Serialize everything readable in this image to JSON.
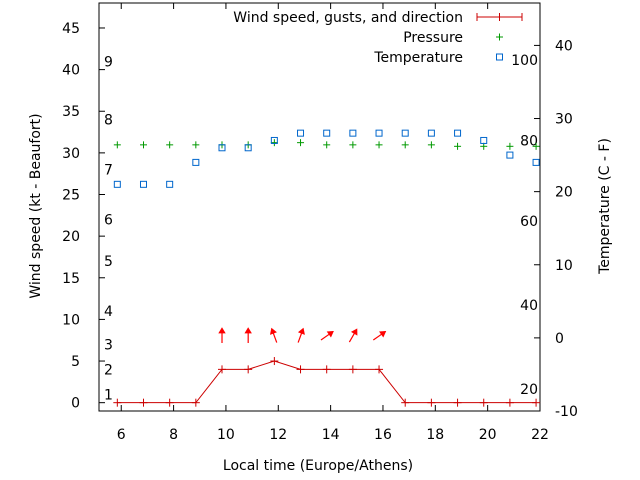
{
  "chart_data": {
    "type": "line",
    "xlabel": "Local time (Europe/Athens)",
    "ylabel": "Wind speed (kt - Beaufort)",
    "y2label": "Temperature (C - F)",
    "xlim": [
      5.15,
      22
    ],
    "ylim": [
      -1,
      48
    ],
    "y2lim": [
      -10,
      45.8
    ],
    "x_ticks": [
      6,
      8,
      10,
      12,
      14,
      16,
      18,
      20,
      22
    ],
    "y_ticks": [
      0,
      5,
      10,
      15,
      20,
      25,
      30,
      35,
      40,
      45
    ],
    "y2_ticks": [
      -10,
      0,
      10,
      20,
      30,
      40
    ],
    "beaufort_labels": [
      {
        "label": "1",
        "y": 1.0
      },
      {
        "label": "2",
        "y": 4.0
      },
      {
        "label": "3",
        "y": 7.0
      },
      {
        "label": "4",
        "y": 11.0
      },
      {
        "label": "5",
        "y": 17.0
      },
      {
        "label": "6",
        "y": 22.0
      },
      {
        "label": "7",
        "y": 28.0
      },
      {
        "label": "8",
        "y": 34.0
      },
      {
        "label": "9",
        "y": 41.0
      }
    ],
    "fahrenheit_labels": [
      {
        "label": "20",
        "y2": -7
      },
      {
        "label": "40",
        "y2": 4.5
      },
      {
        "label": "60",
        "y2": 16
      },
      {
        "label": "80",
        "y2": 27
      },
      {
        "label": "100",
        "y2": 38
      }
    ],
    "legend": [
      "Wind speed, gusts, and direction",
      "Pressure",
      "Temperature"
    ],
    "colors": {
      "wind": "#cc0000",
      "pressure": "#009900",
      "temperature": "#0066cc",
      "arrows": "#ff0000"
    },
    "series": [
      {
        "name": "Wind speed, gusts, and direction",
        "axis": "y",
        "x": [
          5.85,
          6.85,
          7.85,
          8.85,
          9.85,
          10.85,
          11.85,
          12.85,
          13.85,
          14.85,
          15.85,
          16.85,
          17.85,
          18.85,
          19.85,
          20.85,
          21.85
        ],
        "values": [
          0,
          0,
          0,
          0,
          4,
          4,
          5,
          4,
          4,
          4,
          4,
          0,
          0,
          0,
          0,
          0,
          0
        ]
      },
      {
        "name": "Pressure",
        "axis": "y2",
        "x": [
          5.85,
          6.85,
          7.85,
          8.85,
          9.85,
          10.85,
          11.85,
          12.85,
          13.85,
          14.85,
          15.85,
          16.85,
          17.85,
          18.85,
          19.85,
          20.85,
          21.85
        ],
        "values": [
          26.4,
          26.4,
          26.4,
          26.4,
          26.4,
          26.4,
          26.7,
          26.7,
          26.4,
          26.4,
          26.4,
          26.4,
          26.4,
          26.2,
          26.2,
          26.2,
          26.2
        ]
      },
      {
        "name": "Temperature",
        "axis": "y2",
        "x": [
          5.85,
          6.85,
          7.85,
          8.85,
          9.85,
          10.85,
          11.85,
          12.85,
          13.85,
          14.85,
          15.85,
          16.85,
          17.85,
          18.85,
          19.85,
          20.85,
          21.85
        ],
        "values": [
          21,
          21,
          21,
          24,
          26,
          26,
          27,
          28,
          28,
          28,
          28,
          28,
          28,
          28,
          27,
          25,
          24
        ]
      }
    ],
    "wind_direction_arrows": [
      {
        "x": 9.85,
        "angle_deg": 0
      },
      {
        "x": 10.85,
        "angle_deg": 0
      },
      {
        "x": 11.85,
        "angle_deg": -20
      },
      {
        "x": 12.85,
        "angle_deg": 20
      },
      {
        "x": 13.85,
        "angle_deg": 55
      },
      {
        "x": 14.85,
        "angle_deg": 30
      },
      {
        "x": 15.85,
        "angle_deg": 55
      }
    ]
  }
}
